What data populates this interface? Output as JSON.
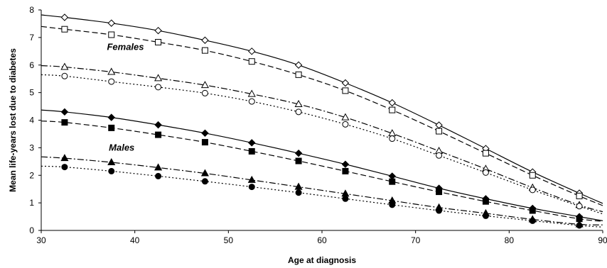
{
  "chart_data": {
    "type": "line",
    "title": "",
    "xlabel": "Age at diagnosis",
    "ylabel": "Mean life-years lost due to diabetes",
    "xlim": [
      30,
      90
    ],
    "ylim": [
      0,
      8
    ],
    "xticks": [
      "30",
      "40",
      "50",
      "60",
      "70",
      "80",
      "90"
    ],
    "yticks": [
      "0",
      "1",
      "2",
      "3",
      "4",
      "5",
      "6",
      "7",
      "8"
    ],
    "grid": false,
    "legend": "none",
    "annotations": [
      "Females",
      "Males"
    ],
    "x": [
      32.5,
      37.5,
      42.5,
      47.5,
      52.5,
      57.5,
      62.5,
      67.5,
      72.5,
      77.5,
      82.5,
      87.5
    ],
    "series": [
      {
        "group": "Females",
        "marker": "open-diamond",
        "line": "solid",
        "curve": [
          [
            30,
            7.82
          ],
          [
            90,
            0.98
          ]
        ],
        "values": [
          7.73,
          7.52,
          7.25,
          6.9,
          6.5,
          6.0,
          5.35,
          4.63,
          3.82,
          2.97,
          2.12,
          1.35
        ]
      },
      {
        "group": "Females",
        "marker": "open-square",
        "line": "dashed",
        "curve": [
          [
            30,
            7.4
          ],
          [
            90,
            0.9
          ]
        ],
        "values": [
          7.3,
          7.1,
          6.83,
          6.53,
          6.13,
          5.65,
          5.07,
          4.37,
          3.6,
          2.8,
          2.0,
          1.25
        ]
      },
      {
        "group": "Females",
        "marker": "open-triangle",
        "line": "dash-dot",
        "curve": [
          [
            30,
            5.98
          ],
          [
            90,
            0.68
          ]
        ],
        "values": [
          5.93,
          5.75,
          5.52,
          5.27,
          4.95,
          4.58,
          4.1,
          3.52,
          2.88,
          2.23,
          1.55,
          0.92
        ]
      },
      {
        "group": "Females",
        "marker": "open-circle",
        "line": "dotted",
        "curve": [
          [
            30,
            5.65
          ],
          [
            90,
            0.6
          ]
        ],
        "values": [
          5.6,
          5.4,
          5.2,
          4.98,
          4.68,
          4.3,
          3.85,
          3.33,
          2.72,
          2.1,
          1.47,
          0.88
        ]
      },
      {
        "group": "Males",
        "marker": "filled-diamond",
        "line": "solid",
        "curve": [
          [
            30,
            4.37
          ],
          [
            90,
            0.35
          ]
        ],
        "values": [
          4.3,
          4.1,
          3.83,
          3.53,
          3.18,
          2.8,
          2.4,
          1.97,
          1.53,
          1.15,
          0.8,
          0.5
        ]
      },
      {
        "group": "Males",
        "marker": "filled-square",
        "line": "dashed",
        "curve": [
          [
            30,
            3.97
          ],
          [
            90,
            0.33
          ]
        ],
        "values": [
          3.92,
          3.72,
          3.47,
          3.2,
          2.87,
          2.52,
          2.15,
          1.77,
          1.4,
          1.05,
          0.72,
          0.42
        ]
      },
      {
        "group": "Males",
        "marker": "filled-triangle",
        "line": "dash-dot",
        "curve": [
          [
            30,
            2.67
          ],
          [
            90,
            0.2
          ]
        ],
        "values": [
          2.62,
          2.47,
          2.28,
          2.07,
          1.83,
          1.58,
          1.33,
          1.08,
          0.83,
          0.62,
          0.4,
          0.22
        ]
      },
      {
        "group": "Males",
        "marker": "filled-circle",
        "line": "dotted",
        "curve": [
          [
            30,
            2.33
          ],
          [
            90,
            0.12
          ]
        ],
        "values": [
          2.3,
          2.15,
          1.97,
          1.78,
          1.58,
          1.37,
          1.15,
          0.93,
          0.72,
          0.53,
          0.35,
          0.18
        ]
      }
    ]
  }
}
